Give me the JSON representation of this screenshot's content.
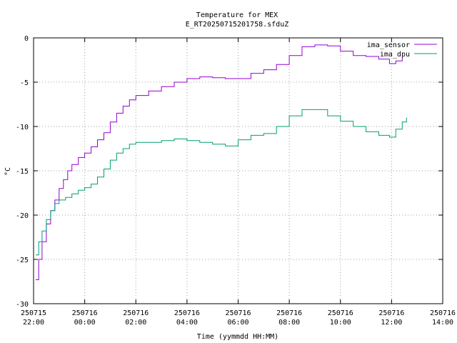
{
  "chart_data": {
    "type": "line",
    "title": "Temperature for MEX",
    "subtitle": "E_RT20250715201758.sfduZ",
    "xlabel": "Time (yymmdd HH:MM)",
    "ylabel": "°C",
    "xlim": [
      "2025-07-15 22:00",
      "2025-07-16 14:00"
    ],
    "ylim": [
      -30,
      0
    ],
    "grid": true,
    "legend_position": "top-right",
    "x_ticks": [
      {
        "date": "250715",
        "time": "22:00",
        "at": "2025-07-15 22:00"
      },
      {
        "date": "250716",
        "time": "00:00",
        "at": "2025-07-16 00:00"
      },
      {
        "date": "250716",
        "time": "02:00",
        "at": "2025-07-16 02:00"
      },
      {
        "date": "250716",
        "time": "04:00",
        "at": "2025-07-16 04:00"
      },
      {
        "date": "250716",
        "time": "06:00",
        "at": "2025-07-16 06:00"
      },
      {
        "date": "250716",
        "time": "08:00",
        "at": "2025-07-16 08:00"
      },
      {
        "date": "250716",
        "time": "10:00",
        "at": "2025-07-16 10:00"
      },
      {
        "date": "250716",
        "time": "12:00",
        "at": "2025-07-16 12:00"
      },
      {
        "date": "250716",
        "time": "14:00",
        "at": "2025-07-16 14:00"
      }
    ],
    "y_ticks": [
      "0",
      "-5",
      "-10",
      "-15",
      "-20",
      "-25",
      "-30"
    ],
    "series": [
      {
        "name": "ima_sensor",
        "color": "#9400d3",
        "points": [
          [
            "2025-07-15 22:05",
            -27.3
          ],
          [
            "2025-07-15 22:12",
            -25.0
          ],
          [
            "2025-07-15 22:20",
            -23.0
          ],
          [
            "2025-07-15 22:30",
            -21.0
          ],
          [
            "2025-07-15 22:40",
            -19.5
          ],
          [
            "2025-07-15 22:50",
            -18.3
          ],
          [
            "2025-07-15 23:00",
            -17.0
          ],
          [
            "2025-07-15 23:10",
            -16.0
          ],
          [
            "2025-07-15 23:20",
            -15.0
          ],
          [
            "2025-07-15 23:30",
            -14.3
          ],
          [
            "2025-07-15 23:45",
            -13.5
          ],
          [
            "2025-07-16 00:00",
            -13.0
          ],
          [
            "2025-07-16 00:15",
            -12.3
          ],
          [
            "2025-07-16 00:30",
            -11.5
          ],
          [
            "2025-07-16 00:45",
            -10.7
          ],
          [
            "2025-07-16 01:00",
            -9.5
          ],
          [
            "2025-07-16 01:15",
            -8.5
          ],
          [
            "2025-07-16 01:30",
            -7.7
          ],
          [
            "2025-07-16 01:45",
            -7.0
          ],
          [
            "2025-07-16 02:00",
            -6.5
          ],
          [
            "2025-07-16 02:30",
            -6.0
          ],
          [
            "2025-07-16 03:00",
            -5.5
          ],
          [
            "2025-07-16 03:30",
            -5.0
          ],
          [
            "2025-07-16 04:00",
            -4.6
          ],
          [
            "2025-07-16 04:30",
            -4.4
          ],
          [
            "2025-07-16 05:00",
            -4.5
          ],
          [
            "2025-07-16 05:30",
            -4.6
          ],
          [
            "2025-07-16 06:00",
            -4.6
          ],
          [
            "2025-07-16 06:30",
            -4.0
          ],
          [
            "2025-07-16 07:00",
            -3.6
          ],
          [
            "2025-07-16 07:30",
            -3.0
          ],
          [
            "2025-07-16 08:00",
            -2.0
          ],
          [
            "2025-07-16 08:30",
            -1.0
          ],
          [
            "2025-07-16 09:00",
            -0.8
          ],
          [
            "2025-07-16 09:30",
            -0.9
          ],
          [
            "2025-07-16 10:00",
            -1.5
          ],
          [
            "2025-07-16 10:30",
            -2.0
          ],
          [
            "2025-07-16 11:00",
            -2.1
          ],
          [
            "2025-07-16 11:30",
            -2.4
          ],
          [
            "2025-07-16 11:55",
            -2.9
          ],
          [
            "2025-07-16 12:10",
            -2.6
          ],
          [
            "2025-07-16 12:25",
            -2.2
          ]
        ]
      },
      {
        "name": "ima_dpu",
        "color": "#009e73",
        "points": [
          [
            "2025-07-15 22:05",
            -24.5
          ],
          [
            "2025-07-15 22:12",
            -23.0
          ],
          [
            "2025-07-15 22:20",
            -21.8
          ],
          [
            "2025-07-15 22:30",
            -20.5
          ],
          [
            "2025-07-15 22:40",
            -19.5
          ],
          [
            "2025-07-15 22:50",
            -18.7
          ],
          [
            "2025-07-15 23:00",
            -18.3
          ],
          [
            "2025-07-15 23:15",
            -18.0
          ],
          [
            "2025-07-15 23:30",
            -17.6
          ],
          [
            "2025-07-15 23:45",
            -17.2
          ],
          [
            "2025-07-16 00:00",
            -16.9
          ],
          [
            "2025-07-16 00:15",
            -16.5
          ],
          [
            "2025-07-16 00:30",
            -15.7
          ],
          [
            "2025-07-16 00:45",
            -14.8
          ],
          [
            "2025-07-16 01:00",
            -13.8
          ],
          [
            "2025-07-16 01:15",
            -13.0
          ],
          [
            "2025-07-16 01:30",
            -12.5
          ],
          [
            "2025-07-16 01:45",
            -12.0
          ],
          [
            "2025-07-16 02:00",
            -11.8
          ],
          [
            "2025-07-16 02:30",
            -11.8
          ],
          [
            "2025-07-16 03:00",
            -11.6
          ],
          [
            "2025-07-16 03:30",
            -11.4
          ],
          [
            "2025-07-16 04:00",
            -11.6
          ],
          [
            "2025-07-16 04:30",
            -11.8
          ],
          [
            "2025-07-16 05:00",
            -12.0
          ],
          [
            "2025-07-16 05:30",
            -12.2
          ],
          [
            "2025-07-16 06:00",
            -11.5
          ],
          [
            "2025-07-16 06:30",
            -11.0
          ],
          [
            "2025-07-16 07:00",
            -10.8
          ],
          [
            "2025-07-16 07:30",
            -10.0
          ],
          [
            "2025-07-16 08:00",
            -8.8
          ],
          [
            "2025-07-16 08:30",
            -8.1
          ],
          [
            "2025-07-16 09:00",
            -8.1
          ],
          [
            "2025-07-16 09:30",
            -8.8
          ],
          [
            "2025-07-16 10:00",
            -9.4
          ],
          [
            "2025-07-16 10:30",
            -10.0
          ],
          [
            "2025-07-16 11:00",
            -10.6
          ],
          [
            "2025-07-16 11:30",
            -11.0
          ],
          [
            "2025-07-16 11:55",
            -11.2
          ],
          [
            "2025-07-16 12:10",
            -10.3
          ],
          [
            "2025-07-16 12:25",
            -9.5
          ],
          [
            "2025-07-16 12:35",
            -9.0
          ]
        ]
      }
    ]
  }
}
